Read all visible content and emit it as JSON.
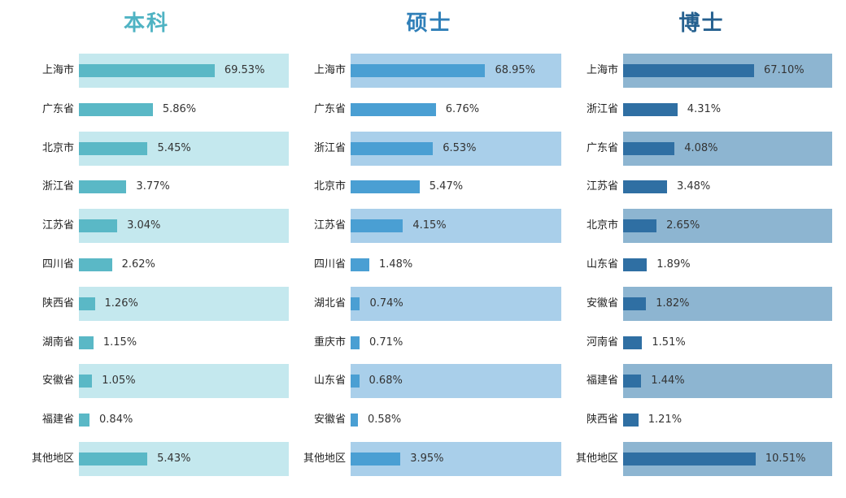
{
  "chart_data": [
    {
      "type": "bar",
      "orientation": "horizontal",
      "title": "本科",
      "color": "#5ab8c6",
      "band_color": "#c4e8ee",
      "categories": [
        "上海市",
        "广东省",
        "北京市",
        "浙江省",
        "江苏省",
        "四川省",
        "陕西省",
        "湖南省",
        "安徽省",
        "福建省",
        "其他地区"
      ],
      "values": [
        69.53,
        5.86,
        5.45,
        3.77,
        3.04,
        2.62,
        1.26,
        1.15,
        1.05,
        0.84,
        5.43
      ],
      "labels": [
        "69.53%",
        "5.86%",
        "5.45%",
        "3.77%",
        "3.04%",
        "2.62%",
        "1.26%",
        "1.15%",
        "1.05%",
        "0.84%",
        "5.43%"
      ]
    },
    {
      "type": "bar",
      "orientation": "horizontal",
      "title": "硕士",
      "color": "#4a9fd3",
      "band_color": "#a9cfea",
      "categories": [
        "上海市",
        "广东省",
        "浙江省",
        "北京市",
        "江苏省",
        "四川省",
        "湖北省",
        "重庆市",
        "山东省",
        "安徽省",
        "其他地区"
      ],
      "values": [
        68.95,
        6.76,
        6.53,
        5.47,
        4.15,
        1.48,
        0.74,
        0.71,
        0.68,
        0.58,
        3.95
      ],
      "labels": [
        "68.95%",
        "6.76%",
        "6.53%",
        "5.47%",
        "4.15%",
        "1.48%",
        "0.74%",
        "0.71%",
        "0.68%",
        "0.58%",
        "3.95%"
      ]
    },
    {
      "type": "bar",
      "orientation": "horizontal",
      "title": "博士",
      "color": "#2f6fa3",
      "band_color": "#8db5d1",
      "categories": [
        "上海市",
        "浙江省",
        "广东省",
        "江苏省",
        "北京市",
        "山东省",
        "安徽省",
        "河南省",
        "福建省",
        "陕西省",
        "其他地区"
      ],
      "values": [
        67.1,
        4.31,
        4.08,
        3.48,
        2.65,
        1.89,
        1.82,
        1.51,
        1.44,
        1.21,
        10.51
      ],
      "labels": [
        "67.10%",
        "4.31%",
        "4.08%",
        "3.48%",
        "2.65%",
        "1.89%",
        "1.82%",
        "1.51%",
        "1.44%",
        "1.21%",
        "10.51%"
      ]
    }
  ]
}
